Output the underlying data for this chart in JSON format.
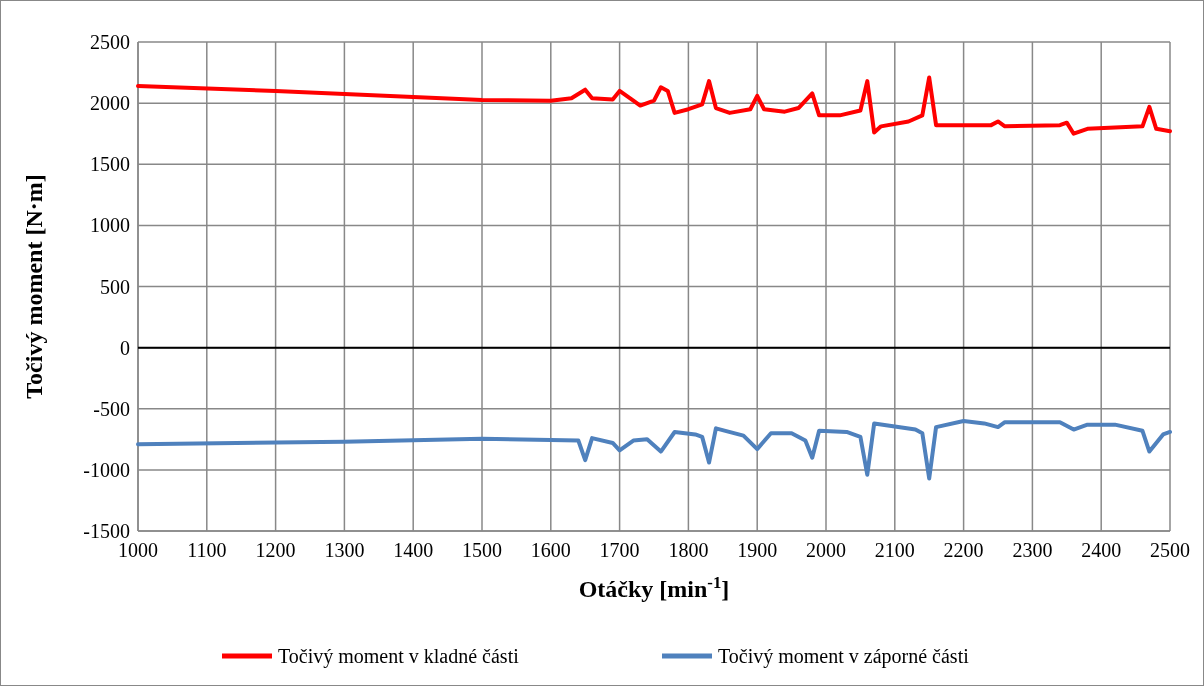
{
  "chart_data": {
    "type": "line",
    "xlabel": "Otáčky [min$^{-1}$]",
    "ylabel": "Točivý moment [N·m]",
    "xlim": [
      1000,
      2500
    ],
    "xticks": [
      1000,
      1100,
      1200,
      1300,
      1400,
      1500,
      1600,
      1700,
      1800,
      1900,
      2000,
      2100,
      2200,
      2300,
      2400,
      2500
    ],
    "ylim": [
      -1500,
      2500
    ],
    "yticks": [
      -1500,
      -1000,
      -500,
      0,
      500,
      1000,
      1500,
      2000,
      2500
    ],
    "grid": true,
    "legend": "bottom",
    "marker": "none",
    "line_style": "solid",
    "ref_lines": [
      {
        "axis": "y",
        "value": 0,
        "color": "#000000"
      }
    ],
    "series": [
      {
        "name": "Točivý moment v kladné části",
        "color": "#ff0000",
        "x": [
          1000,
          1200,
          1400,
          1500,
          1600,
          1630,
          1650,
          1660,
          1690,
          1700,
          1720,
          1730,
          1750,
          1760,
          1770,
          1780,
          1800,
          1820,
          1830,
          1840,
          1860,
          1890,
          1900,
          1910,
          1940,
          1960,
          1980,
          1990,
          2020,
          2050,
          2060,
          2070,
          2080,
          2120,
          2140,
          2150,
          2160,
          2240,
          2250,
          2260,
          2340,
          2350,
          2360,
          2380,
          2460,
          2470,
          2480,
          2500
        ],
        "values": [
          2140,
          2100,
          2050,
          2025,
          2020,
          2040,
          2110,
          2040,
          2030,
          2100,
          2020,
          1980,
          2020,
          2130,
          2100,
          1920,
          1950,
          1990,
          2180,
          1960,
          1920,
          1950,
          2060,
          1950,
          1930,
          1960,
          2080,
          1900,
          1900,
          1940,
          2180,
          1760,
          1810,
          1850,
          1900,
          2210,
          1820,
          1820,
          1850,
          1810,
          1820,
          1840,
          1750,
          1790,
          1810,
          1970,
          1790,
          1770
        ]
      },
      {
        "name": "Točivý moment v záporné části",
        "color": "#4f81bd",
        "x": [
          1000,
          1300,
          1500,
          1600,
          1640,
          1650,
          1660,
          1690,
          1700,
          1720,
          1740,
          1760,
          1780,
          1810,
          1820,
          1830,
          1840,
          1880,
          1900,
          1920,
          1950,
          1970,
          1980,
          1990,
          2030,
          2050,
          2060,
          2070,
          2130,
          2140,
          2150,
          2160,
          2200,
          2230,
          2250,
          2260,
          2340,
          2360,
          2380,
          2420,
          2460,
          2470,
          2490,
          2500
        ],
        "values": [
          -790,
          -770,
          -745,
          -755,
          -760,
          -920,
          -740,
          -780,
          -840,
          -760,
          -750,
          -850,
          -690,
          -710,
          -730,
          -940,
          -660,
          -720,
          -830,
          -700,
          -700,
          -760,
          -900,
          -680,
          -690,
          -730,
          -1040,
          -620,
          -670,
          -700,
          -1070,
          -650,
          -600,
          -620,
          -650,
          -610,
          -610,
          -670,
          -630,
          -630,
          -680,
          -850,
          -710,
          -690
        ]
      }
    ]
  }
}
